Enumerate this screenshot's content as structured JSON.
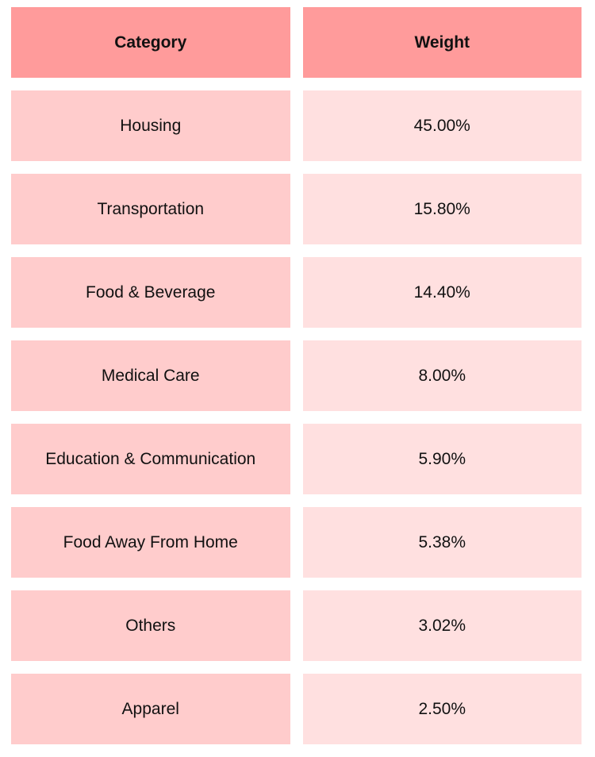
{
  "colors": {
    "header_bg": "#ff9b9b",
    "category_bg": "#ffcccc",
    "value_bg": "#ffe0e0",
    "text": "#111111"
  },
  "chart_data": {
    "type": "table",
    "columns": [
      "Category",
      "Weight"
    ],
    "rows": [
      [
        "Housing",
        "45.00%"
      ],
      [
        "Transportation",
        "15.80%"
      ],
      [
        "Food & Beverage",
        "14.40%"
      ],
      [
        "Medical Care",
        "8.00%"
      ],
      [
        "Education & Communication",
        "5.90%"
      ],
      [
        "Food Away From Home",
        "5.38%"
      ],
      [
        "Others",
        "3.02%"
      ],
      [
        "Apparel",
        "2.50%"
      ]
    ]
  }
}
